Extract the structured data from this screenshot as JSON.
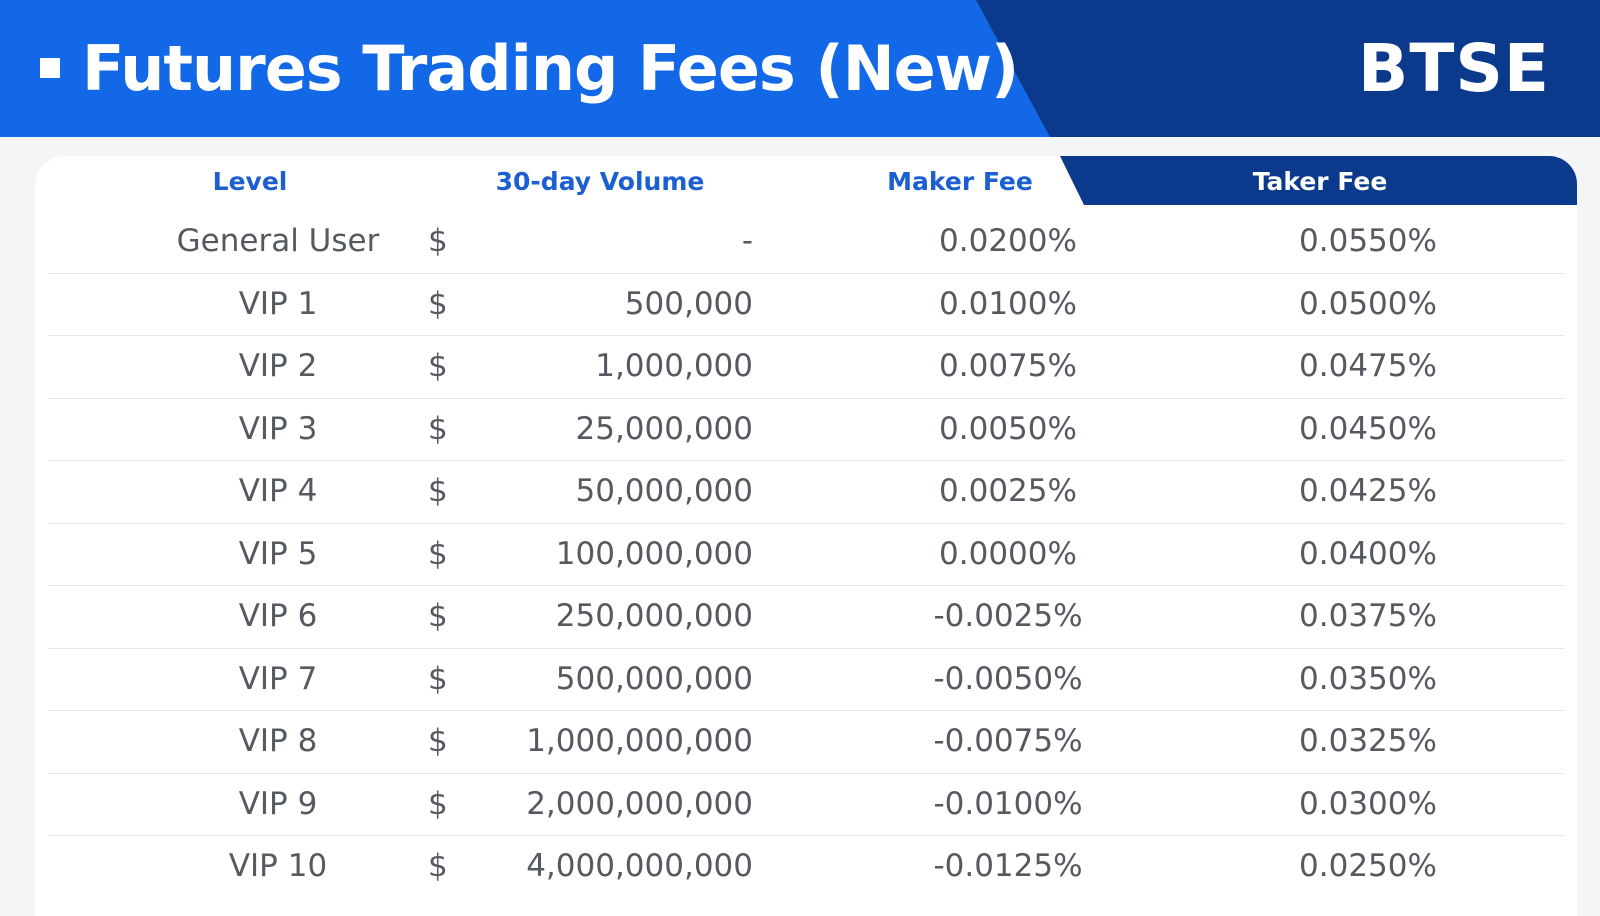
{
  "header": {
    "title": "Futures Trading Fees (New)",
    "brand": "BTSE"
  },
  "columns": {
    "level": "Level",
    "volume": "30-day Volume",
    "maker": "Maker Fee",
    "taker": "Taker Fee"
  },
  "currency_symbol": "$",
  "rows": [
    {
      "level": "General User",
      "volume": "-",
      "maker": "0.0200%",
      "taker": "0.0550%"
    },
    {
      "level": "VIP 1",
      "volume": "500,000",
      "maker": "0.0100%",
      "taker": "0.0500%"
    },
    {
      "level": "VIP 2",
      "volume": "1,000,000",
      "maker": "0.0075%",
      "taker": "0.0475%"
    },
    {
      "level": "VIP 3",
      "volume": "25,000,000",
      "maker": "0.0050%",
      "taker": "0.0450%"
    },
    {
      "level": "VIP 4",
      "volume": "50,000,000",
      "maker": "0.0025%",
      "taker": "0.0425%"
    },
    {
      "level": "VIP 5",
      "volume": "100,000,000",
      "maker": "0.0000%",
      "taker": "0.0400%"
    },
    {
      "level": "VIP 6",
      "volume": "250,000,000",
      "maker": "-0.0025%",
      "taker": "0.0375%"
    },
    {
      "level": "VIP 7",
      "volume": "500,000,000",
      "maker": "-0.0050%",
      "taker": "0.0350%"
    },
    {
      "level": "VIP 8",
      "volume": "1,000,000,000",
      "maker": "-0.0075%",
      "taker": "0.0325%"
    },
    {
      "level": "VIP 9",
      "volume": "2,000,000,000",
      "maker": "-0.0100%",
      "taker": "0.0300%"
    },
    {
      "level": "VIP 10",
      "volume": "4,000,000,000",
      "maker": "-0.0125%",
      "taker": "0.0250%"
    }
  ],
  "colors": {
    "banner_primary": "#1268e6",
    "banner_dark": "#0b3a8c",
    "header_text": "#1b5fd0",
    "body_text": "#555a60"
  }
}
